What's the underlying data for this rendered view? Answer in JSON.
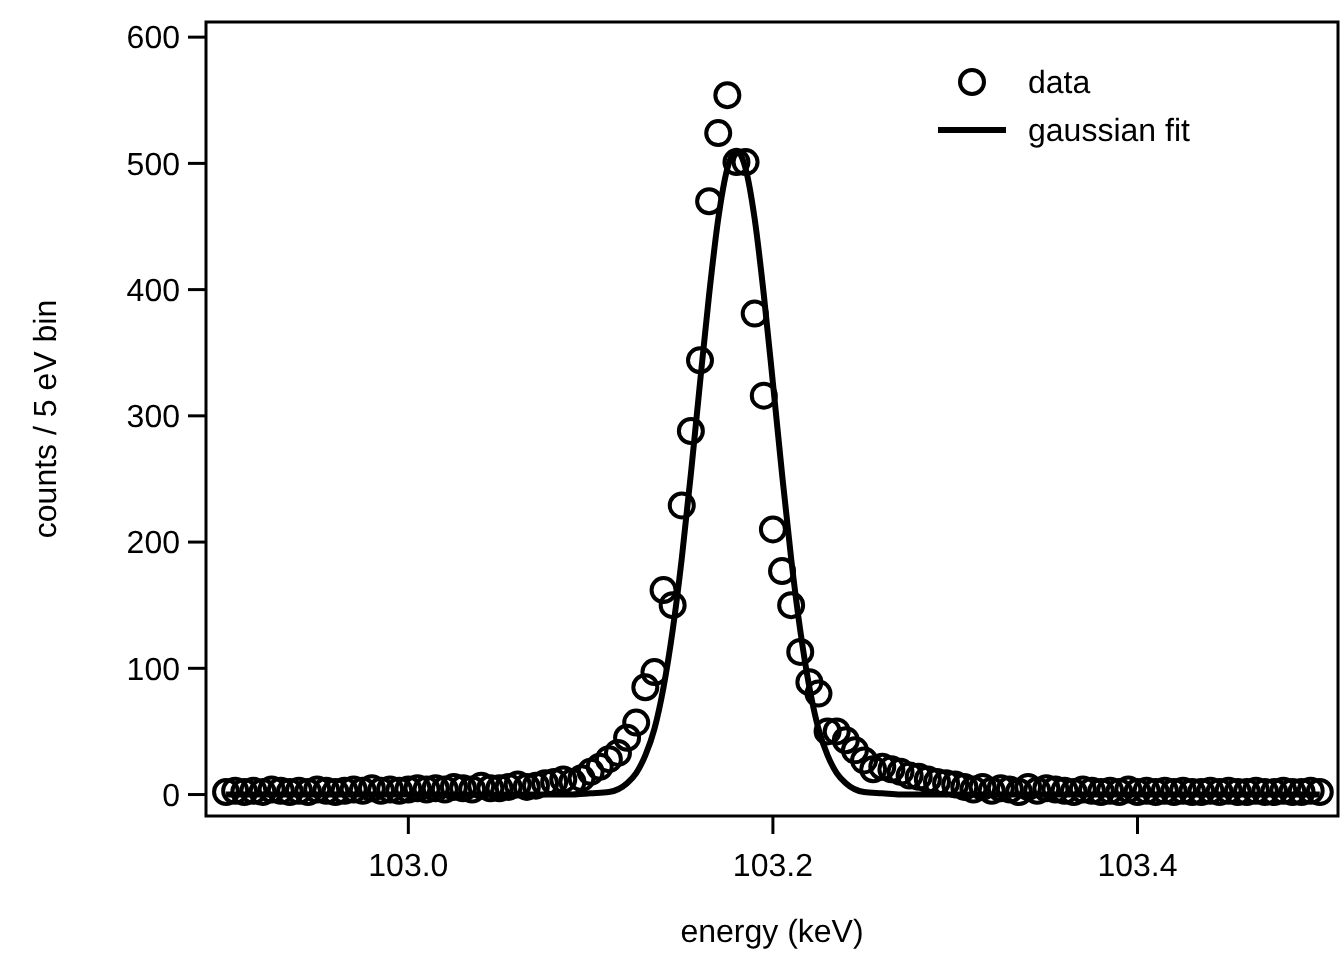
{
  "chart_data": {
    "type": "scatter",
    "xlabel": "energy (keV)",
    "ylabel": "counts / 5 eV bin",
    "xlim": [
      102.889,
      103.51
    ],
    "ylim": [
      -17,
      612
    ],
    "xticks": [
      {
        "value": 103.0,
        "label": "103.0"
      },
      {
        "value": 103.2,
        "label": "103.2"
      },
      {
        "value": 103.4,
        "label": "103.4"
      }
    ],
    "yticks": [
      0,
      100,
      200,
      300,
      400,
      500,
      600
    ],
    "grid": false,
    "legend": "top right",
    "marker": "circle",
    "series": [
      {
        "name": "data",
        "color": "#000000",
        "x": [
          102.9,
          102.905,
          102.91,
          102.915,
          102.92,
          102.925,
          102.93,
          102.935,
          102.94,
          102.945,
          102.95,
          102.955,
          102.96,
          102.965,
          102.97,
          102.975,
          102.98,
          102.985,
          102.99,
          102.995,
          103.0,
          103.005,
          103.01,
          103.015,
          103.02,
          103.025,
          103.03,
          103.035,
          103.04,
          103.045,
          103.05,
          103.055,
          103.06,
          103.065,
          103.07,
          103.075,
          103.08,
          103.085,
          103.09,
          103.095,
          103.1,
          103.105,
          103.11,
          103.115,
          103.12,
          103.125,
          103.13,
          103.135,
          103.14,
          103.145,
          103.15,
          103.155,
          103.16,
          103.165,
          103.17,
          103.175,
          103.18,
          103.185,
          103.19,
          103.195,
          103.2,
          103.205,
          103.21,
          103.215,
          103.22,
          103.225,
          103.23,
          103.235,
          103.24,
          103.245,
          103.25,
          103.255,
          103.26,
          103.265,
          103.27,
          103.275,
          103.28,
          103.285,
          103.29,
          103.295,
          103.3,
          103.305,
          103.31,
          103.315,
          103.32,
          103.325,
          103.33,
          103.335,
          103.34,
          103.345,
          103.35,
          103.355,
          103.36,
          103.365,
          103.37,
          103.375,
          103.38,
          103.385,
          103.39,
          103.395,
          103.4,
          103.405,
          103.41,
          103.415,
          103.42,
          103.425,
          103.43,
          103.435,
          103.44,
          103.445,
          103.45,
          103.455,
          103.46,
          103.465,
          103.47,
          103.475,
          103.48,
          103.485,
          103.49,
          103.495,
          103.5
        ],
        "values": [
          2,
          3,
          2,
          3,
          2,
          4,
          3,
          2,
          3,
          2,
          4,
          3,
          2,
          3,
          4,
          3,
          5,
          3,
          4,
          3,
          4,
          5,
          4,
          5,
          4,
          6,
          5,
          4,
          7,
          5,
          5,
          6,
          8,
          6,
          7,
          9,
          10,
          12,
          10,
          13,
          18,
          22,
          28,
          33,
          45,
          57,
          85,
          97,
          162,
          150,
          229,
          288,
          344,
          470,
          524,
          554,
          501,
          501,
          381,
          316,
          210,
          177,
          150,
          113,
          89,
          80,
          50,
          50,
          43,
          35,
          27,
          20,
          22,
          20,
          18,
          15,
          14,
          12,
          10,
          9,
          8,
          6,
          4,
          6,
          3,
          5,
          4,
          2,
          6,
          3,
          5,
          4,
          3,
          2,
          4,
          3,
          2,
          3,
          2,
          4,
          2,
          3,
          2,
          3,
          2,
          3,
          2,
          2,
          3,
          2,
          3,
          2,
          2,
          3,
          2,
          2,
          3,
          2,
          2,
          3,
          2
        ]
      },
      {
        "name": "gaussian fit",
        "type": "line",
        "color": "#000000",
        "marker": "none",
        "line_style": "solid",
        "x": [
          102.9,
          103.09,
          103.1,
          103.11,
          103.12,
          103.125,
          103.13,
          103.135,
          103.14,
          103.145,
          103.15,
          103.155,
          103.16,
          103.165,
          103.17,
          103.175,
          103.18,
          103.185,
          103.19,
          103.195,
          103.2,
          103.205,
          103.21,
          103.215,
          103.22,
          103.225,
          103.23,
          103.235,
          103.24,
          103.25,
          103.26,
          103.27,
          103.5
        ],
        "values": [
          0,
          0,
          1,
          2,
          9,
          17,
          31,
          52,
          85,
          130,
          187,
          254,
          326,
          396,
          456,
          496,
          510,
          496,
          456,
          396,
          326,
          254,
          187,
          130,
          85,
          52,
          31,
          17,
          9,
          2,
          1,
          0,
          0
        ]
      }
    ]
  }
}
